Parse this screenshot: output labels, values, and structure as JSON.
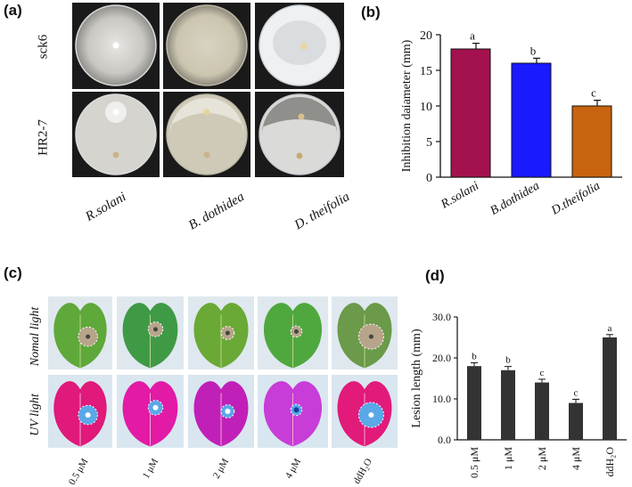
{
  "panels": {
    "a": "(a)",
    "b": "(b)",
    "c": "(c)",
    "d": "(d)"
  },
  "panel_a": {
    "rows": [
      "sck6",
      "HR2-7"
    ],
    "organisms": [
      "R.solani",
      "B. dothidea",
      "D. theifolia"
    ]
  },
  "panel_c": {
    "rows": [
      "Nomal light",
      "UV light"
    ],
    "treatments": [
      "0.5 μM",
      "1 μM",
      "2 μM",
      "4 μM",
      "ddH₂O"
    ]
  },
  "chart_data": [
    {
      "type": "bar",
      "panel": "b",
      "categories": [
        "R.solani",
        "B.dothidea",
        "D.theifolia"
      ],
      "values": [
        18,
        16,
        10
      ],
      "errors": [
        0.8,
        0.7,
        0.8
      ],
      "letters": [
        "a",
        "b",
        "c"
      ],
      "colors": [
        "#a3124f",
        "#1a1aff",
        "#c8630f"
      ],
      "ylabel": "Inhibition daiameter (mm)",
      "xlabel": "",
      "ylim": [
        0,
        20
      ],
      "yticks": [
        "0",
        "5",
        "10",
        "15",
        "20"
      ],
      "grid": false
    },
    {
      "type": "bar",
      "panel": "d",
      "categories": [
        "0.5 μM",
        "1 μM",
        "2 μM",
        "4 μM",
        "ddH₂O"
      ],
      "values": [
        18,
        17,
        14,
        9,
        25
      ],
      "errors": [
        0.8,
        0.9,
        0.8,
        0.9,
        0.7
      ],
      "letters": [
        "b",
        "b",
        "c",
        "c",
        "a"
      ],
      "colors": [
        "#333333"
      ],
      "ylabel": "Lesion length (mm)",
      "xlabel": "",
      "ylim": [
        0,
        30
      ],
      "yticks": [
        "0.0",
        "10.0",
        "20.0",
        "30.0"
      ],
      "grid": false
    }
  ]
}
